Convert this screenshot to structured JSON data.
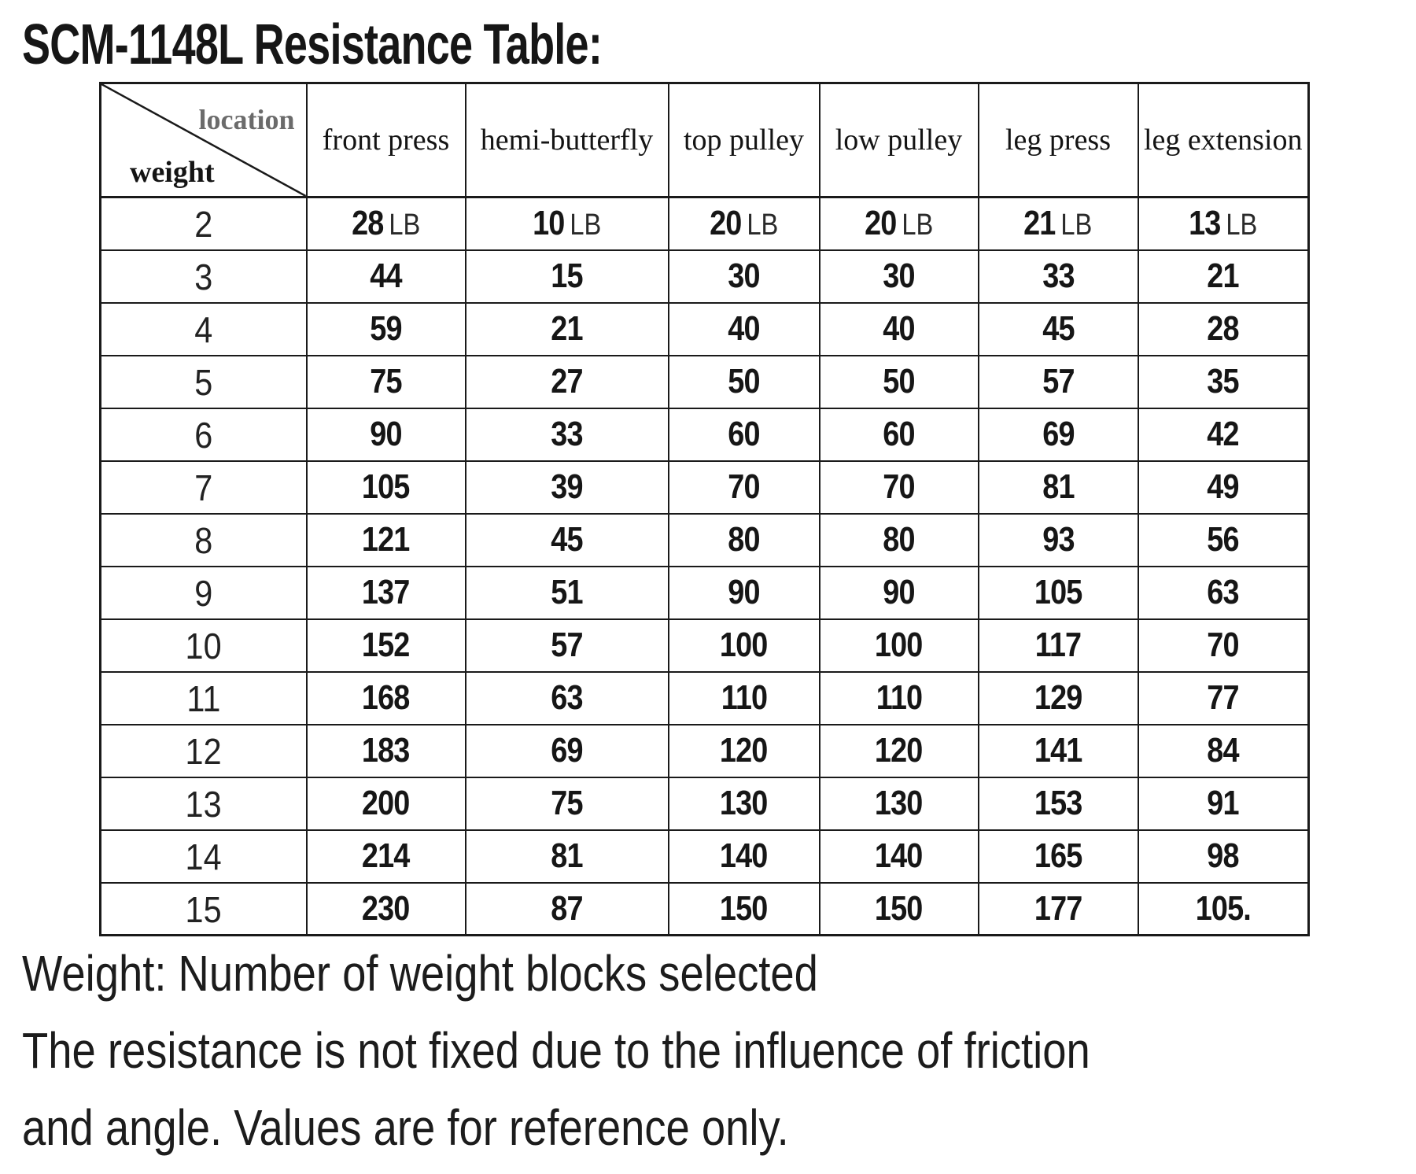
{
  "title": "SCM-1148L Resistance Table:",
  "table": {
    "corner": {
      "top_right_label": "location",
      "bottom_left_label": "weight"
    },
    "columns": [
      "front press",
      "hemi-butterfly",
      "top pulley",
      "low pulley",
      "leg press",
      "leg extension"
    ],
    "unit": "LB",
    "rows": [
      {
        "weight": "2",
        "show_unit": true,
        "values": [
          "28",
          "10",
          "20",
          "20",
          "21",
          "13"
        ]
      },
      {
        "weight": "3",
        "values": [
          "44",
          "15",
          "30",
          "30",
          "33",
          "21"
        ]
      },
      {
        "weight": "4",
        "values": [
          "59",
          "21",
          "40",
          "40",
          "45",
          "28"
        ]
      },
      {
        "weight": "5",
        "values": [
          "75",
          "27",
          "50",
          "50",
          "57",
          "35"
        ]
      },
      {
        "weight": "6",
        "values": [
          "90",
          "33",
          "60",
          "60",
          "69",
          "42"
        ]
      },
      {
        "weight": "7",
        "values": [
          "105",
          "39",
          "70",
          "70",
          "81",
          "49"
        ]
      },
      {
        "weight": "8",
        "values": [
          "121",
          "45",
          "80",
          "80",
          "93",
          "56"
        ]
      },
      {
        "weight": "9",
        "values": [
          "137",
          "51",
          "90",
          "90",
          "105",
          "63"
        ]
      },
      {
        "weight": "10",
        "values": [
          "152",
          "57",
          "100",
          "100",
          "117",
          "70"
        ]
      },
      {
        "weight": "11",
        "values": [
          "168",
          "63",
          "110",
          "110",
          "129",
          "77"
        ]
      },
      {
        "weight": "12",
        "values": [
          "183",
          "69",
          "120",
          "120",
          "141",
          "84"
        ]
      },
      {
        "weight": "13",
        "values": [
          "200",
          "75",
          "130",
          "130",
          "153",
          "91"
        ]
      },
      {
        "weight": "14",
        "values": [
          "214",
          "81",
          "140",
          "140",
          "165",
          "98"
        ]
      },
      {
        "weight": "15",
        "values": [
          "230",
          "87",
          "150",
          "150",
          "177",
          "105."
        ]
      }
    ]
  },
  "notes": [
    "Weight: Number of weight blocks selected",
    "The resistance is not fixed due to the influence of friction",
    "and angle. Values are for reference only."
  ],
  "colors": {
    "text": "#1a1a1a",
    "muted_label": "#6b6b6b",
    "border": "#1a1a1a",
    "background": "#ffffff"
  }
}
